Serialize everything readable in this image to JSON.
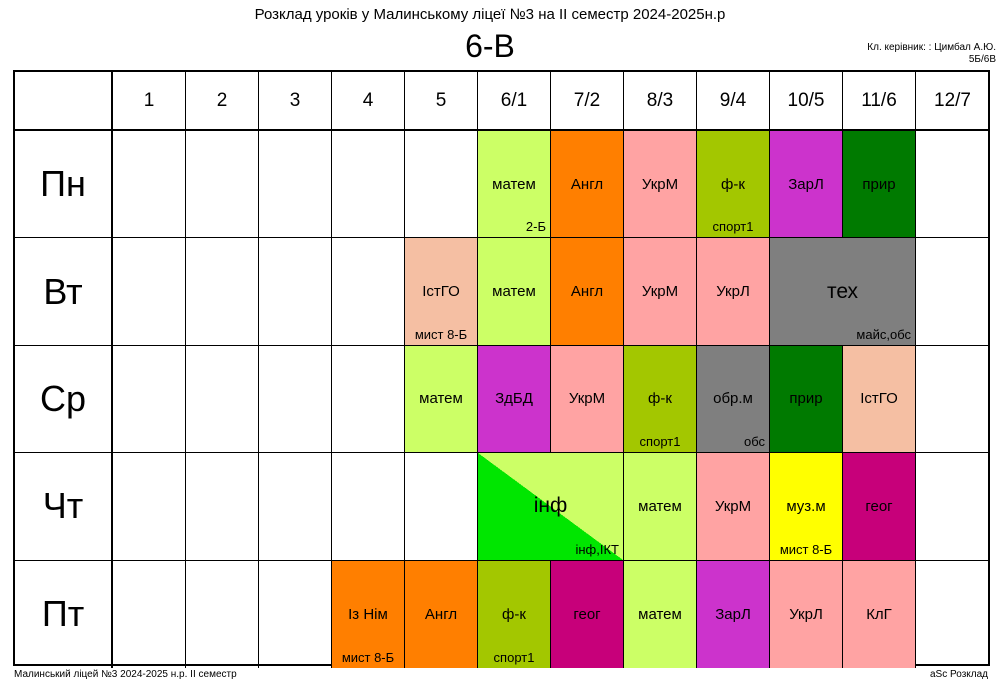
{
  "title": "Розклад уроків у Малинському ліцеї №3 на ІІ семестр 2024-2025н.р",
  "class_name": "6-В",
  "teacher_line1": "Кл. керівник: : Цимбал А.Ю.",
  "teacher_line2": "5Б/6В",
  "periods": [
    "1",
    "2",
    "3",
    "4",
    "5",
    "6/1",
    "7/2",
    "8/3",
    "9/4",
    "10/5",
    "11/6",
    "12/7"
  ],
  "days": [
    "Пн",
    "Вт",
    "Ср",
    "Чт",
    "Пт"
  ],
  "lessons": {
    "mon_6": {
      "subject": "матем",
      "room": "2-Б",
      "color": "#ccff66"
    },
    "mon_7": {
      "subject": "Англ",
      "room": "",
      "color": "#ff7f00"
    },
    "mon_8": {
      "subject": "УкрМ",
      "room": "",
      "color": "#ffa3a3"
    },
    "mon_9": {
      "subject": "ф-к",
      "room": "спорт1",
      "color": "#a3c700"
    },
    "mon_10": {
      "subject": "ЗарЛ",
      "room": "",
      "color": "#cc33cc"
    },
    "mon_11": {
      "subject": "прир",
      "room": "",
      "color": "#007a00"
    },
    "tue_5": {
      "subject": "ІстГО",
      "room": "мист 8-Б",
      "color": "#f5bfa3"
    },
    "tue_6": {
      "subject": "матем",
      "room": "",
      "color": "#ccff66"
    },
    "tue_7": {
      "subject": "Англ",
      "room": "",
      "color": "#ff7f00"
    },
    "tue_8": {
      "subject": "УкрМ",
      "room": "",
      "color": "#ffa3a3"
    },
    "tue_9": {
      "subject": "УкрЛ",
      "room": "",
      "color": "#ffa3a3"
    },
    "tue_10_11": {
      "subject": "тех",
      "room": "майс,обс",
      "color": "#7f7f7f"
    },
    "wed_5": {
      "subject": "матем",
      "room": "",
      "color": "#ccff66"
    },
    "wed_6": {
      "subject": "ЗдБД",
      "room": "",
      "color": "#cc33cc"
    },
    "wed_7": {
      "subject": "УкрМ",
      "room": "",
      "color": "#ffa3a3"
    },
    "wed_8": {
      "subject": "ф-к",
      "room": "спорт1",
      "color": "#a3c700"
    },
    "wed_9": {
      "subject": "обр.м",
      "room": "обс",
      "color": "#7f7f7f"
    },
    "wed_10": {
      "subject": "прир",
      "room": "",
      "color": "#007a00"
    },
    "wed_11": {
      "subject": "ІстГО",
      "room": "",
      "color": "#f5bfa3"
    },
    "thu_6_7": {
      "subject": "інф",
      "room": "інф,ІКТ",
      "color": "#ccff66",
      "color2": "#00e600"
    },
    "thu_8": {
      "subject": "матем",
      "room": "",
      "color": "#ccff66"
    },
    "thu_9": {
      "subject": "УкрМ",
      "room": "",
      "color": "#ffa3a3"
    },
    "thu_10": {
      "subject": "муз.м",
      "room": "мист 8-Б",
      "color": "#ffff00"
    },
    "thu_11": {
      "subject": "геог",
      "room": "",
      "color": "#c7007a"
    },
    "fri_4": {
      "subject": "Із Нім",
      "room": "мист 8-Б",
      "color": "#ff7f00"
    },
    "fri_5": {
      "subject": "Англ",
      "room": "",
      "color": "#ff7f00"
    },
    "fri_6": {
      "subject": "ф-к",
      "room": "спорт1",
      "color": "#a3c700"
    },
    "fri_7": {
      "subject": "геог",
      "room": "",
      "color": "#c7007a"
    },
    "fri_8": {
      "subject": "матем",
      "room": "",
      "color": "#ccff66"
    },
    "fri_9": {
      "subject": "ЗарЛ",
      "room": "",
      "color": "#cc33cc"
    },
    "fri_10": {
      "subject": "УкрЛ",
      "room": "",
      "color": "#ffa3a3"
    },
    "fri_11": {
      "subject": "КлГ",
      "room": "",
      "color": "#ffa3a3"
    }
  },
  "footer_left": "Малинський ліцей №3  2024-2025 н.р. ІІ семестр",
  "footer_right": "aSc Розклад"
}
